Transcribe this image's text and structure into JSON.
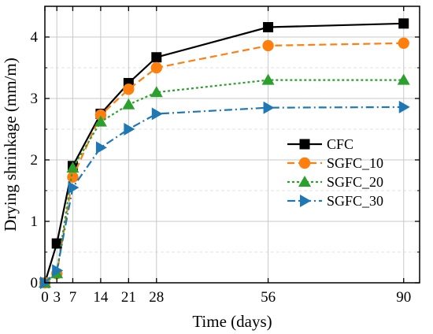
{
  "chart_data": {
    "type": "line",
    "title": "",
    "xlabel": "Time (days)",
    "ylabel": "Drying shrinkage (mm/m)",
    "xlim": [
      0,
      94
    ],
    "ylim": [
      0,
      4.5
    ],
    "xticks": [
      0,
      3,
      7,
      14,
      21,
      28,
      56,
      90
    ],
    "yticks": [
      0,
      1,
      2,
      3,
      4
    ],
    "grid": true,
    "legend_position": "center-right",
    "x": [
      0,
      3,
      7,
      14,
      21,
      28,
      56,
      90
    ],
    "series": [
      {
        "name": "CFC",
        "color": "#000000",
        "marker": "square",
        "line_style": "solid",
        "values": [
          0,
          0.64,
          1.9,
          2.75,
          3.25,
          3.67,
          4.16,
          4.22
        ]
      },
      {
        "name": "SGFC_10",
        "color": "#ff7f0e",
        "marker": "circle",
        "line_style": "dashed",
        "values": [
          0,
          0.15,
          1.72,
          2.73,
          3.15,
          3.5,
          3.86,
          3.9
        ]
      },
      {
        "name": "SGFC_20",
        "color": "#2ca02c",
        "marker": "triangle-up",
        "line_style": "dotted",
        "values": [
          0,
          0.15,
          1.87,
          2.62,
          2.9,
          3.1,
          3.3,
          3.3
        ]
      },
      {
        "name": "SGFC_30",
        "color": "#1f77b4",
        "marker": "triangle-right",
        "line_style": "dash-dot",
        "values": [
          0,
          0.2,
          1.55,
          2.2,
          2.5,
          2.75,
          2.85,
          2.86
        ]
      }
    ]
  }
}
